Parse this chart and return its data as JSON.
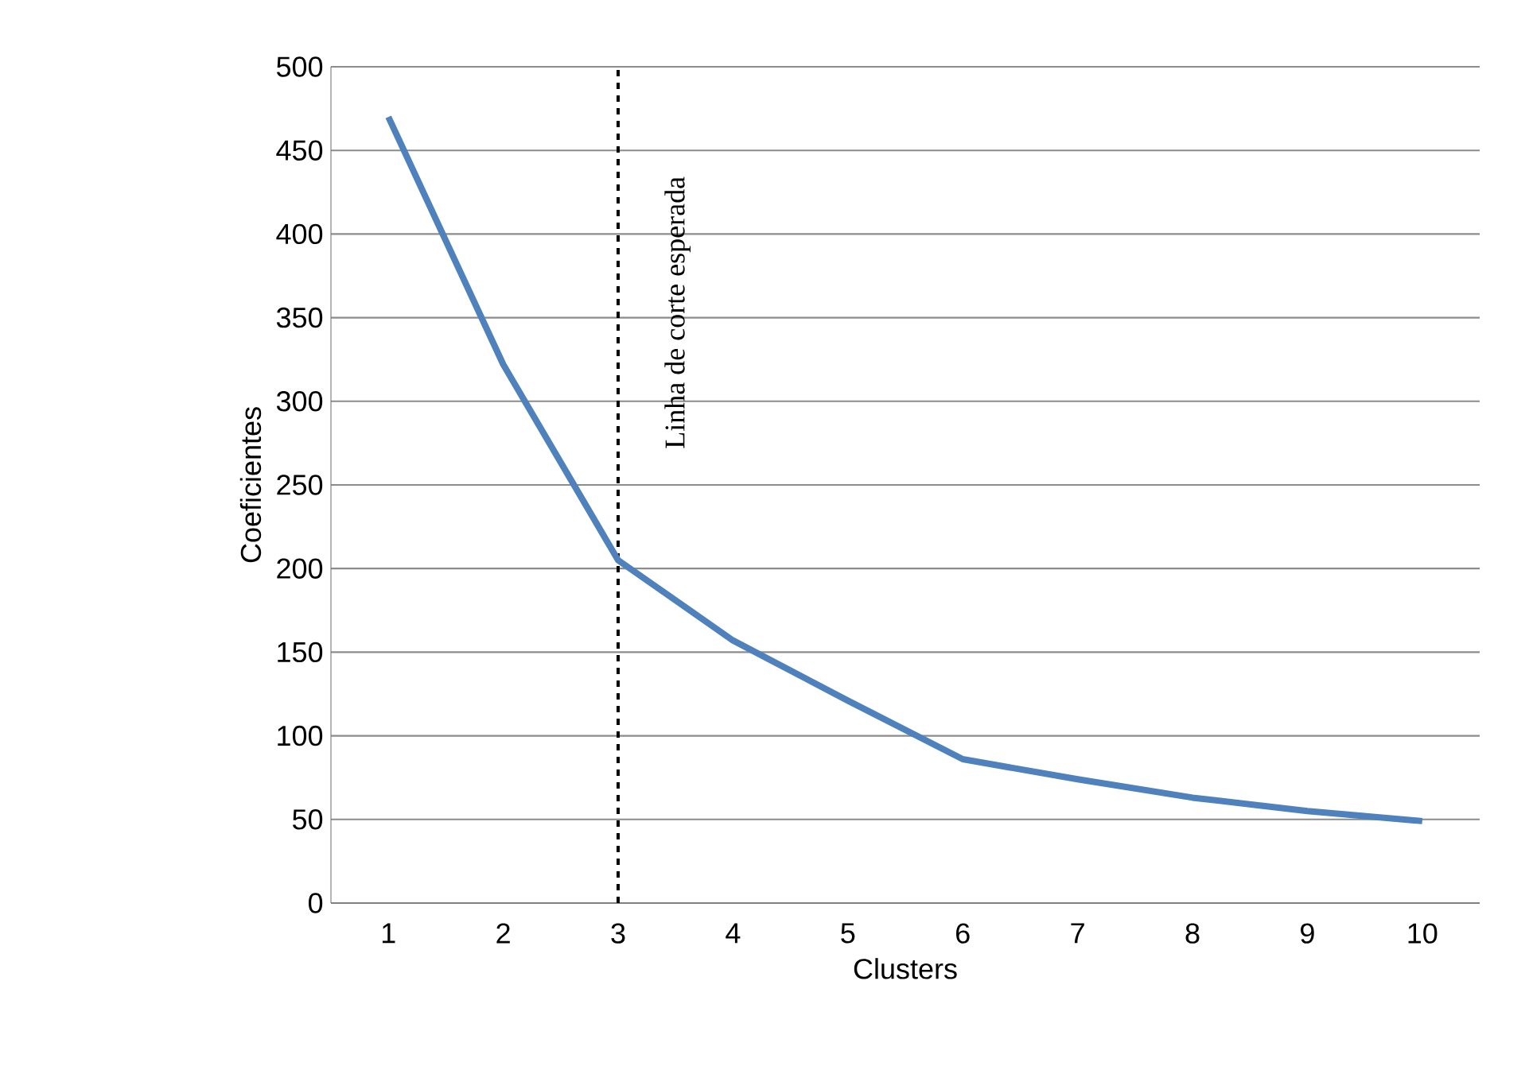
{
  "chart_data": {
    "type": "line",
    "xlabel": "Clusters",
    "ylabel": "Coeficientes",
    "x": [
      1,
      2,
      3,
      4,
      5,
      6,
      7,
      8,
      9,
      10
    ],
    "series": [
      {
        "color": "#4f81bd",
        "values": [
          470,
          322,
          205,
          157,
          121,
          86,
          74,
          63,
          55,
          49
        ]
      }
    ],
    "xlim": [
      0.5,
      10.5
    ],
    "xticks": [
      1,
      2,
      3,
      4,
      5,
      6,
      7,
      8,
      9,
      10
    ],
    "ylim": [
      0,
      500
    ],
    "yticks": [
      0,
      50,
      100,
      150,
      200,
      250,
      300,
      350,
      400,
      450,
      500
    ],
    "grid": "y",
    "marker": "none",
    "line_style": "solid",
    "ref_lines": [
      {
        "axis": "x",
        "value": 3,
        "label": "Linha de corte esperada",
        "color": "#000000",
        "line_style": "dashed"
      }
    ]
  }
}
